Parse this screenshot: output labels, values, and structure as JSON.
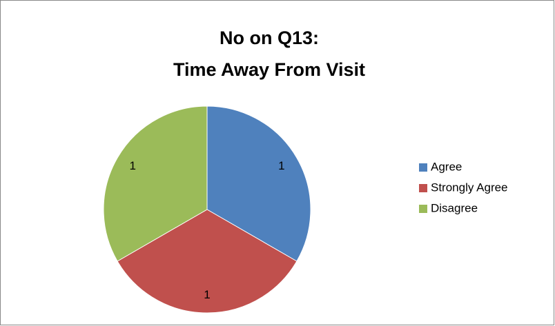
{
  "chart_data": {
    "type": "pie",
    "title": [
      "No on Q13:",
      "Time Away From Visit"
    ],
    "categories": [
      "Agree",
      "Strongly Agree",
      "Disagree"
    ],
    "values": [
      1,
      1,
      1
    ],
    "colors": [
      "#4f81bd",
      "#c0504d",
      "#9bbb59"
    ],
    "legend": "right"
  }
}
